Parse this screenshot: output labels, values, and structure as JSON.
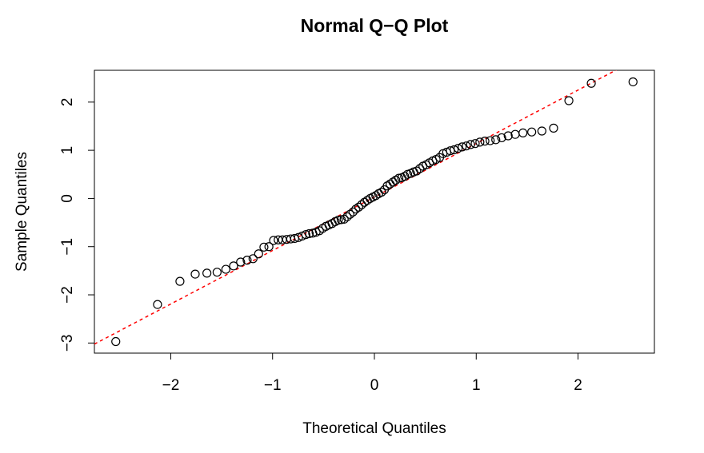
{
  "chart_data": {
    "type": "qqplot",
    "title": "Normal Q−Q Plot",
    "x_label": "Theoretical Quantiles",
    "y_label": "Sample Quantiles",
    "xlim": [
      -2.75,
      2.75
    ],
    "ylim": [
      -3.21,
      2.66
    ],
    "xticks": [
      {
        "value": -2,
        "label": "−2"
      },
      {
        "value": -1,
        "label": "−1"
      },
      0,
      1,
      2
    ],
    "yticks": [
      {
        "value": -3,
        "label": "−3"
      },
      {
        "value": -2,
        "label": "−2"
      },
      {
        "value": -1,
        "label": "−1"
      },
      0,
      1,
      2
    ],
    "point_color": "#000000",
    "reference_line": {
      "intercept": 0.03,
      "slope": 1.11,
      "color": "#ff0000"
    },
    "x": [
      -2.54,
      -2.13,
      -1.91,
      -1.76,
      -1.645,
      -1.545,
      -1.459,
      -1.383,
      -1.314,
      -1.25,
      -1.192,
      -1.137,
      -1.085,
      -1.036,
      -0.99,
      -0.945,
      -0.903,
      -0.862,
      -0.822,
      -0.783,
      -0.746,
      -0.71,
      -0.674,
      -0.64,
      -0.606,
      -0.573,
      -0.54,
      -0.508,
      -0.477,
      -0.446,
      -0.415,
      -0.385,
      -0.355,
      -0.326,
      -0.297,
      -0.268,
      -0.24,
      -0.21,
      -0.182,
      -0.154,
      -0.126,
      -0.098,
      -0.07,
      -0.042,
      -0.014,
      0.014,
      0.042,
      0.07,
      0.098,
      0.126,
      0.154,
      0.182,
      0.21,
      0.24,
      0.268,
      0.297,
      0.326,
      0.355,
      0.385,
      0.415,
      0.446,
      0.477,
      0.508,
      0.54,
      0.573,
      0.606,
      0.64,
      0.674,
      0.71,
      0.746,
      0.783,
      0.822,
      0.862,
      0.903,
      0.945,
      0.99,
      1.036,
      1.085,
      1.137,
      1.192,
      1.25,
      1.314,
      1.383,
      1.459,
      1.545,
      1.645,
      1.76,
      1.91,
      2.13,
      2.54
    ],
    "values": [
      -2.97,
      -2.2,
      -1.72,
      -1.57,
      -1.55,
      -1.53,
      -1.47,
      -1.4,
      -1.32,
      -1.28,
      -1.25,
      -1.15,
      -1.01,
      -1.0,
      -0.87,
      -0.86,
      -0.86,
      -0.85,
      -0.84,
      -0.83,
      -0.81,
      -0.78,
      -0.75,
      -0.73,
      -0.72,
      -0.7,
      -0.67,
      -0.62,
      -0.58,
      -0.55,
      -0.52,
      -0.48,
      -0.45,
      -0.44,
      -0.43,
      -0.38,
      -0.33,
      -0.28,
      -0.22,
      -0.18,
      -0.13,
      -0.08,
      -0.04,
      0.0,
      0.03,
      0.06,
      0.1,
      0.13,
      0.18,
      0.26,
      0.3,
      0.34,
      0.38,
      0.42,
      0.43,
      0.46,
      0.5,
      0.52,
      0.55,
      0.57,
      0.62,
      0.67,
      0.7,
      0.74,
      0.78,
      0.81,
      0.85,
      0.93,
      0.96,
      0.99,
      1.01,
      1.04,
      1.07,
      1.09,
      1.12,
      1.14,
      1.17,
      1.19,
      1.2,
      1.22,
      1.26,
      1.3,
      1.33,
      1.36,
      1.38,
      1.4,
      1.46,
      2.03,
      2.39,
      2.42
    ]
  }
}
